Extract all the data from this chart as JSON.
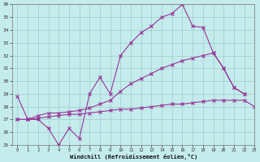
{
  "color": "#993399",
  "bg_color": "#c5ecec",
  "grid_color": "#99cccc",
  "xlabel": "Windchill (Refroidissement éolien,°C)",
  "xlim": [
    -0.5,
    23
  ],
  "ylim": [
    25,
    36
  ],
  "yticks": [
    25,
    26,
    27,
    28,
    29,
    30,
    31,
    32,
    33,
    34,
    35,
    36
  ],
  "xticks": [
    0,
    1,
    2,
    3,
    4,
    5,
    6,
    7,
    8,
    9,
    10,
    11,
    12,
    13,
    14,
    15,
    16,
    17,
    18,
    19,
    20,
    21,
    22,
    23
  ],
  "line_top_x": [
    0,
    1,
    2,
    3,
    4,
    5,
    6,
    7,
    8,
    9,
    10,
    11,
    12,
    13,
    14,
    15,
    16,
    17,
    18,
    19,
    20,
    21,
    22
  ],
  "line_top_y": [
    28.8,
    27.0,
    27.0,
    26.3,
    25.0,
    26.3,
    25.5,
    29.0,
    30.3,
    29.0,
    32.0,
    33.0,
    33.8,
    34.3,
    35.0,
    35.3,
    36.0,
    34.3,
    34.2,
    32.2,
    31.0,
    29.5,
    29.0
  ],
  "line_mid_x": [
    0,
    1,
    2,
    3,
    4,
    5,
    6,
    7,
    8,
    9,
    10,
    11,
    12,
    13,
    14,
    15,
    16,
    17,
    18,
    19,
    20,
    21,
    22
  ],
  "line_mid_y": [
    27.0,
    27.0,
    27.3,
    27.5,
    27.5,
    27.6,
    27.7,
    27.9,
    28.2,
    28.5,
    29.2,
    29.8,
    30.2,
    30.6,
    31.0,
    31.3,
    31.6,
    31.8,
    32.0,
    32.2,
    31.0,
    29.5,
    29.0
  ],
  "line_bot_x": [
    0,
    1,
    2,
    3,
    4,
    5,
    6,
    7,
    8,
    9,
    10,
    11,
    12,
    13,
    14,
    15,
    16,
    17,
    18,
    19,
    20,
    21,
    22,
    23
  ],
  "line_bot_y": [
    27.0,
    27.0,
    27.1,
    27.2,
    27.3,
    27.4,
    27.4,
    27.5,
    27.6,
    27.7,
    27.8,
    27.8,
    27.9,
    28.0,
    28.1,
    28.2,
    28.2,
    28.3,
    28.4,
    28.5,
    28.5,
    28.5,
    28.5,
    28.0
  ]
}
